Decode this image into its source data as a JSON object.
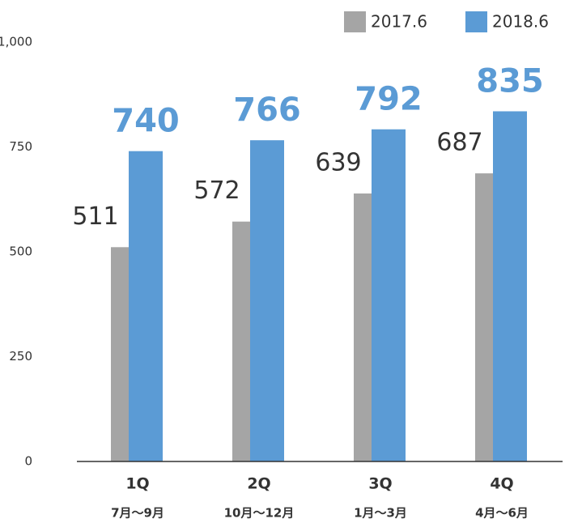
{
  "chart_data": {
    "type": "bar",
    "categories": [
      "1Q",
      "2Q",
      "3Q",
      "4Q"
    ],
    "category_sublabels": [
      "7月～9月",
      "10月～12月",
      "1月～3月",
      "4月～6月"
    ],
    "series": [
      {
        "name": "2017.6",
        "color": "#a5a5a5",
        "values": [
          511,
          572,
          639,
          687
        ]
      },
      {
        "name": "2018.6",
        "color": "#5b9bd5",
        "values": [
          740,
          766,
          792,
          835
        ]
      }
    ],
    "ylim": [
      0,
      1000
    ],
    "yticks": [
      0,
      250,
      500,
      750,
      {
        "value": 1000,
        "label": "1,000"
      }
    ],
    "grid": false,
    "legend": "top-right"
  }
}
